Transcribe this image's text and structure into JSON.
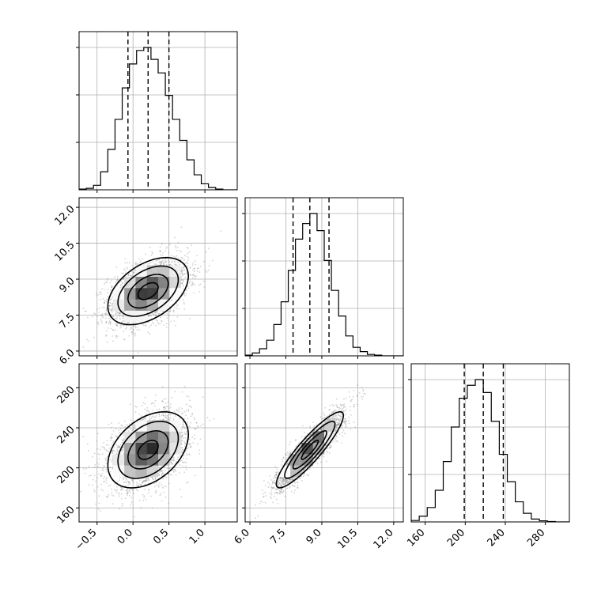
{
  "chart_data": {
    "type": "corner",
    "parameters": [
      {
        "range": [
          -0.75,
          1.45
        ],
        "ticks": [
          -0.5,
          0.0,
          0.5,
          1.0
        ],
        "tick_labels": [
          "−0.5",
          "0.0",
          "0.5",
          "1.0"
        ],
        "quantiles": [
          -0.07,
          0.21,
          0.5
        ],
        "hist_edges_start": -0.75,
        "hist_bin_width": 0.1,
        "hist_counts": [
          0.005,
          0.01,
          0.03,
          0.12,
          0.27,
          0.47,
          0.68,
          0.84,
          0.93,
          0.95,
          0.87,
          0.78,
          0.63,
          0.47,
          0.33,
          0.2,
          0.1,
          0.04,
          0.015,
          0.005,
          0.0,
          0.0
        ]
      },
      {
        "range": [
          5.8,
          12.4
        ],
        "ticks": [
          6.0,
          7.5,
          9.0,
          10.5,
          12.0
        ],
        "tick_labels": [
          "6.0",
          "7.5",
          "9.0",
          "10.5",
          "12.0"
        ],
        "quantiles": [
          7.8,
          8.5,
          9.3
        ],
        "hist_edges_start": 5.8,
        "hist_bin_width": 0.3,
        "hist_counts": [
          0.005,
          0.02,
          0.05,
          0.11,
          0.22,
          0.38,
          0.6,
          0.82,
          0.93,
          1.0,
          0.88,
          0.67,
          0.46,
          0.28,
          0.14,
          0.06,
          0.03,
          0.01,
          0.005,
          0.0,
          0.0,
          0.0
        ]
      },
      {
        "range": [
          146,
          304
        ],
        "ticks": [
          160,
          200,
          240,
          280
        ],
        "tick_labels": [
          "160",
          "200",
          "240",
          "280"
        ],
        "quantiles": [
          199,
          218,
          238
        ],
        "hist_edges_start": 146,
        "hist_bin_width": 8,
        "hist_counts": [
          0.01,
          0.04,
          0.1,
          0.22,
          0.42,
          0.66,
          0.86,
          0.95,
          0.99,
          0.9,
          0.7,
          0.47,
          0.28,
          0.14,
          0.06,
          0.02,
          0.008,
          0.003,
          0.0,
          0.0
        ]
      }
    ],
    "panels_2d": [
      {
        "x": 0,
        "y": 1,
        "mean": [
          0.21,
          8.5
        ],
        "sd": [
          0.28,
          0.7
        ],
        "corr": 0.45
      },
      {
        "x": 0,
        "y": 2,
        "mean": [
          0.21,
          218
        ],
        "sd": [
          0.28,
          19
        ],
        "corr": 0.4
      },
      {
        "x": 1,
        "y": 2,
        "mean": [
          8.5,
          218
        ],
        "sd": [
          0.7,
          19
        ],
        "corr": 0.9
      }
    ],
    "contour_levels": [
      0.5,
      1.0,
      1.5,
      2.0
    ],
    "grid": true,
    "colors": {
      "line": "#000000",
      "points": "#7f7f7f",
      "grid": "#b0b0b0",
      "frame": "#000000"
    }
  }
}
